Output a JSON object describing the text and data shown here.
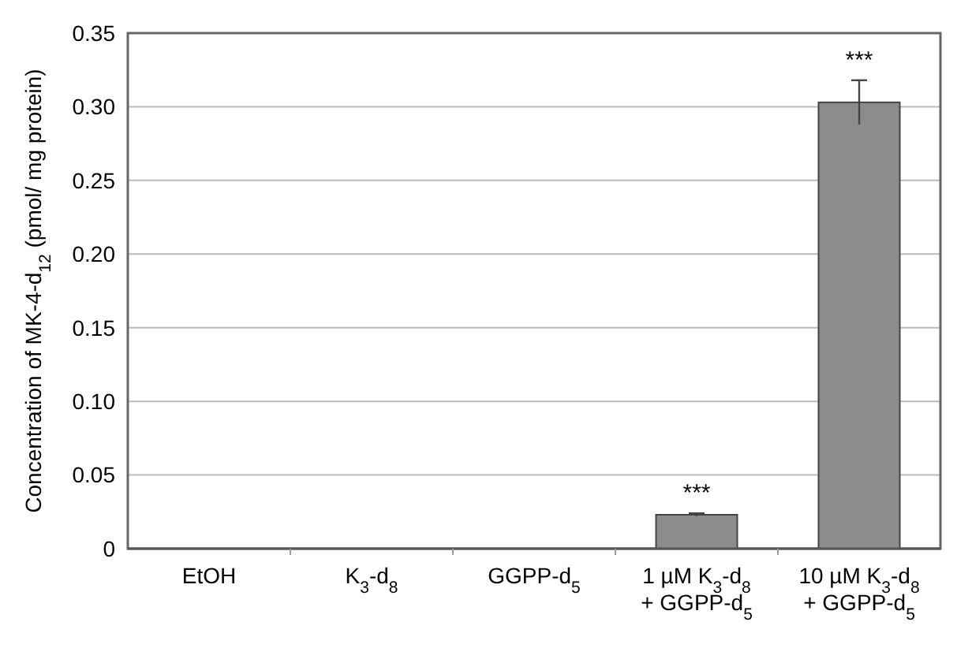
{
  "chart_data": {
    "type": "bar",
    "ylabel": "Concentration of MK-4-d$_{12}$ (pmol/ mg protein)",
    "categories": [
      "EtOH",
      "K$_{3}$-d$_{8}$",
      "GGPP-d$_{5}$",
      "1 µM K$_{3}$-d$_{8}$\n+ GGPP-d$_{5}$",
      "10 µM K$_{3}$-d$_{8}$\n+ GGPP-d$_{5}$"
    ],
    "values": [
      0,
      0,
      0,
      0.023,
      0.303
    ],
    "errors": [
      null,
      null,
      null,
      0.001,
      0.015
    ],
    "color": "#8c8c8c",
    "ylim": [
      0,
      0.35
    ],
    "yticks": [
      0,
      {
        "value": 0.05,
        "label": "0.05"
      },
      {
        "value": 0.1,
        "label": "0.10"
      },
      {
        "value": 0.15,
        "label": "0.15"
      },
      {
        "value": 0.2,
        "label": "0.20"
      },
      {
        "value": 0.25,
        "label": "0.25"
      },
      {
        "value": 0.3,
        "label": "0.30"
      },
      0.35
    ],
    "grid": "y",
    "annotations": [
      {
        "text": "***",
        "x": "1 µM K$_{3}$-d$_{8}$\n+ GGPP-d$_{5}$",
        "y": 0.024
      },
      {
        "text": "***",
        "x": "10 µM K$_{3}$-d$_{8}$\n+ GGPP-d$_{5}$",
        "y": 0.318
      }
    ]
  }
}
